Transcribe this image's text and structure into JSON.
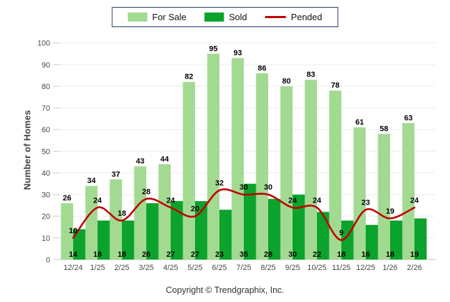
{
  "legend": {
    "items": [
      {
        "label": "For Sale",
        "swatch": "bar",
        "color": "#A3DA92"
      },
      {
        "label": "Sold",
        "swatch": "bar",
        "color": "#0BA32C"
      },
      {
        "label": "Pended",
        "swatch": "line",
        "color": "#C00000"
      }
    ]
  },
  "y_axis_title": "Number of Homes",
  "footer": {
    "copyright": "Copyright © Trendgraphix, Inc."
  },
  "colors": {
    "for_sale": "#A3DA92",
    "sold": "#0BA32C",
    "pended": "#C00000",
    "legend_border": "#1F3A5F",
    "gridline": "#ECECEC",
    "axis_line": "#BFBFBF",
    "tick": "#C9C9C9",
    "axis_text": "#46464F",
    "data_label": "#000000"
  },
  "chart_data": {
    "type": "bar",
    "note": "grouped bars with overlaid smooth line",
    "categories": [
      "12/24",
      "1/25",
      "2/25",
      "3/25",
      "4/25",
      "5/25",
      "6/25",
      "7/25",
      "8/25",
      "9/25",
      "10/25",
      "11/25",
      "12/25",
      "1/26",
      "2/26"
    ],
    "series": [
      {
        "name": "For Sale",
        "type": "bar",
        "color": "#A3DA92",
        "values": [
          26,
          34,
          37,
          43,
          44,
          82,
          95,
          93,
          86,
          80,
          83,
          78,
          61,
          58,
          63
        ]
      },
      {
        "name": "Sold",
        "type": "bar",
        "color": "#0BA32C",
        "values": [
          14,
          18,
          18,
          26,
          27,
          27,
          23,
          35,
          28,
          30,
          22,
          18,
          16,
          18,
          19
        ]
      },
      {
        "name": "Pended",
        "type": "line",
        "color": "#C00000",
        "values": [
          10,
          24,
          18,
          28,
          24,
          20,
          32,
          30,
          30,
          24,
          24,
          9,
          23,
          19,
          24
        ]
      }
    ],
    "title": "",
    "xlabel": "",
    "ylabel": "Number of Homes",
    "ylim": [
      0,
      100
    ],
    "ytick_step": 10,
    "grid": "horizontal",
    "legend_position": "top-center"
  }
}
